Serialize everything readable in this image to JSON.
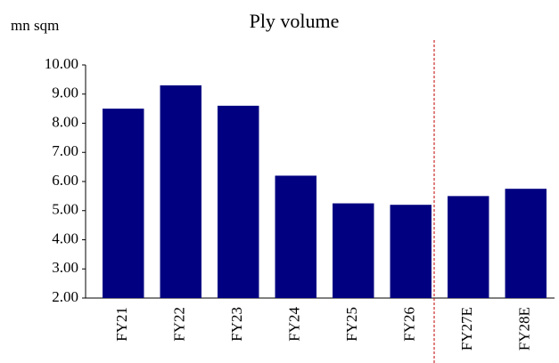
{
  "chart_data": {
    "type": "bar",
    "title": "Ply volume",
    "y_label": "mn sqm",
    "categories": [
      "FY21",
      "FY22",
      "FY23",
      "FY24",
      "FY25",
      "FY26",
      "FY27E",
      "FY28E"
    ],
    "values": [
      8.5,
      9.3,
      8.6,
      6.2,
      5.25,
      5.2,
      5.5,
      5.75
    ],
    "color": "#000080",
    "ylim": [
      2,
      10
    ],
    "yticks": [
      {
        "value": 2,
        "label": "2.00"
      },
      {
        "value": 3,
        "label": "3.00"
      },
      {
        "value": 4,
        "label": "4.00"
      },
      {
        "value": 5,
        "label": "5.00"
      },
      {
        "value": 6,
        "label": "6.00"
      },
      {
        "value": 7,
        "label": "7.00"
      },
      {
        "value": 8,
        "label": "8.00"
      },
      {
        "value": 9,
        "label": "9.00"
      },
      {
        "value": 10,
        "label": "10.00"
      }
    ],
    "grid": false
  }
}
